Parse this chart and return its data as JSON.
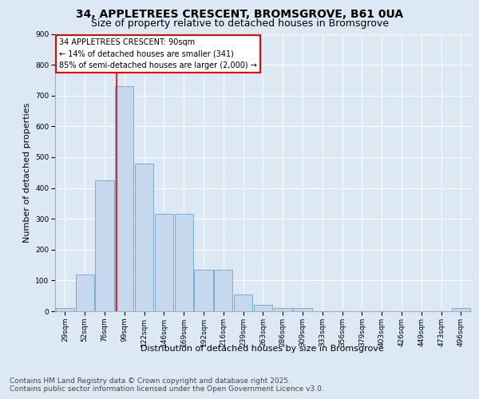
{
  "title1": "34, APPLETREES CRESCENT, BROMSGROVE, B61 0UA",
  "title2": "Size of property relative to detached houses in Bromsgrove",
  "xlabel": "Distribution of detached houses by size in Bromsgrove",
  "ylabel": "Number of detached properties",
  "annotation_line1": "34 APPLETREES CRESCENT: 90sqm",
  "annotation_line2": "← 14% of detached houses are smaller (341)",
  "annotation_line3": "85% of semi-detached houses are larger (2,000) →",
  "footer1": "Contains HM Land Registry data © Crown copyright and database right 2025.",
  "footer2": "Contains public sector information licensed under the Open Government Licence v3.0.",
  "bin_labels": [
    "29sqm",
    "52sqm",
    "76sqm",
    "99sqm",
    "122sqm",
    "146sqm",
    "169sqm",
    "192sqm",
    "216sqm",
    "239sqm",
    "263sqm",
    "286sqm",
    "309sqm",
    "333sqm",
    "356sqm",
    "379sqm",
    "403sqm",
    "426sqm",
    "449sqm",
    "473sqm",
    "496sqm"
  ],
  "bar_heights": [
    10,
    120,
    425,
    730,
    480,
    315,
    315,
    135,
    135,
    55,
    20,
    10,
    10,
    0,
    0,
    0,
    0,
    0,
    0,
    0,
    10
  ],
  "bar_color": "#c5d8ed",
  "bar_edgecolor": "#7aadd4",
  "red_line_x": 2.6,
  "ylim": [
    0,
    900
  ],
  "yticks": [
    0,
    100,
    200,
    300,
    400,
    500,
    600,
    700,
    800,
    900
  ],
  "background_color": "#dce9f5",
  "grid_color": "#ffffff",
  "title_fontsize": 10,
  "subtitle_fontsize": 9,
  "axis_label_fontsize": 8,
  "tick_fontsize": 6.5,
  "annotation_fontsize": 7,
  "footer_fontsize": 6.5
}
